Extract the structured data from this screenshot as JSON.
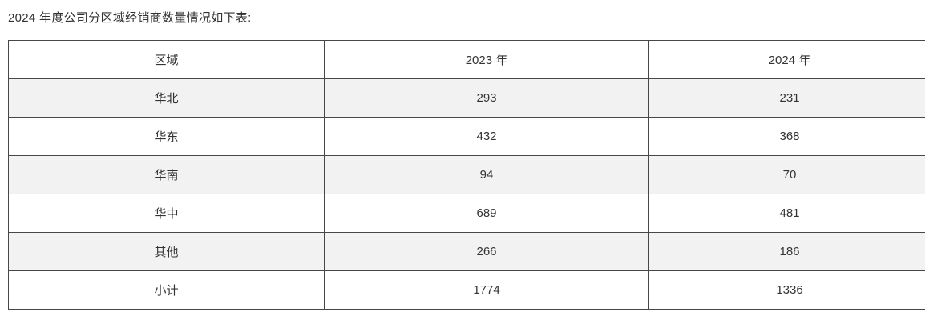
{
  "page": {
    "title": "2024 年度公司分区域经销商数量情况如下表:"
  },
  "table": {
    "columns": [
      "区域",
      "2023 年",
      "2024 年"
    ],
    "rows": [
      {
        "region": "华北",
        "y2023": "293",
        "y2024": "231"
      },
      {
        "region": "华东",
        "y2023": "432",
        "y2024": "368"
      },
      {
        "region": "华南",
        "y2023": "94",
        "y2024": "70"
      },
      {
        "region": "华中",
        "y2023": "689",
        "y2024": "481"
      },
      {
        "region": "其他",
        "y2023": "266",
        "y2024": "186"
      },
      {
        "region": "小计",
        "y2023": "1774",
        "y2024": "1336"
      }
    ]
  },
  "chart_data": {
    "type": "table",
    "title": "2024 年度公司分区域经销商数量情况如下表:",
    "categories": [
      "华北",
      "华东",
      "华南",
      "华中",
      "其他",
      "小计"
    ],
    "series": [
      {
        "name": "2023 年",
        "values": [
          293,
          432,
          94,
          689,
          266,
          1774
        ]
      },
      {
        "name": "2024 年",
        "values": [
          231,
          368,
          70,
          481,
          186,
          1336
        ]
      }
    ]
  },
  "colors": {
    "row_alt_background": "#f2f2f2",
    "border": "#474747",
    "text": "#333333",
    "page_background": "#ffffff"
  }
}
